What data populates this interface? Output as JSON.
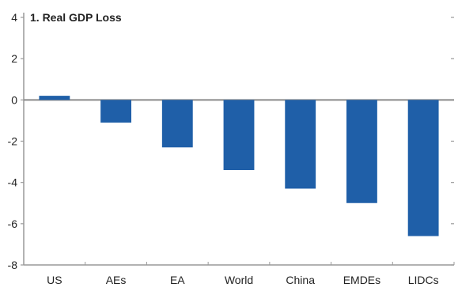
{
  "chart_data": {
    "type": "bar",
    "title": "1. Real GDP Loss",
    "categories": [
      "US",
      "AEs",
      "EA",
      "World",
      "China",
      "EMDEs",
      "LIDCs"
    ],
    "values": [
      0.2,
      -1.1,
      -2.3,
      -3.4,
      -4.3,
      -5.0,
      -6.6
    ],
    "ylim": [
      -8,
      4
    ],
    "yticks": [
      4,
      2,
      0,
      -2,
      -4,
      -6,
      -8
    ],
    "xlabel": "",
    "ylabel": "",
    "grid": false,
    "bar_color": "#1f5fa8",
    "axis_color": "#999999",
    "zero_line_color": "#8a8a8a"
  }
}
